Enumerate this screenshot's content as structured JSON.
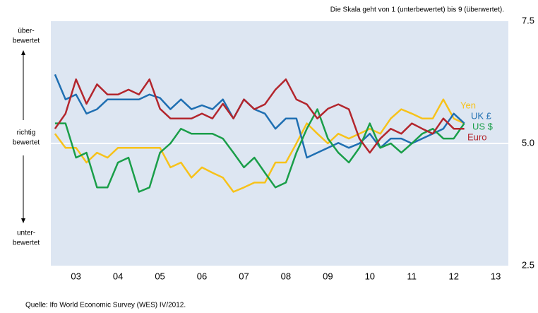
{
  "chart_data": {
    "type": "line",
    "annotation": "Die Skala geht von 1 (unterbewertet) bis 9 (überwertet).",
    "scale_labels": {
      "high": [
        "über-",
        "bewertet"
      ],
      "mid": [
        "richtig",
        "bewertet"
      ],
      "low": [
        "unter-",
        "bewertet"
      ]
    },
    "source": "Quelle: Ifo World Economic Survey (WES) IV/2012.",
    "x": [
      2003,
      2003.25,
      2003.5,
      2003.75,
      2004,
      2004.25,
      2004.5,
      2004.75,
      2005,
      2005.25,
      2005.5,
      2005.75,
      2006,
      2006.25,
      2006.5,
      2006.75,
      2007,
      2007.25,
      2007.5,
      2007.75,
      2008,
      2008.25,
      2008.5,
      2008.75,
      2009,
      2009.25,
      2009.5,
      2009.75,
      2010,
      2010.25,
      2010.5,
      2010.75,
      2011,
      2011.25,
      2011.5,
      2011.75,
      2012,
      2012.25,
      2012.5,
      2012.75
    ],
    "series": [
      {
        "name": "Yen",
        "color": "#f7c21a",
        "values": [
          5.2,
          4.91,
          4.91,
          4.61,
          4.81,
          4.71,
          4.91,
          4.91,
          4.91,
          4.91,
          4.91,
          4.51,
          4.61,
          4.3,
          4.51,
          4.4,
          4.3,
          4.01,
          4.1,
          4.2,
          4.2,
          4.61,
          4.61,
          5.0,
          5.41,
          5.2,
          5.0,
          5.2,
          5.1,
          5.2,
          5.3,
          5.2,
          5.51,
          5.7,
          5.61,
          5.51,
          5.51,
          5.9,
          5.51,
          5.41
        ]
      },
      {
        "name": "UK £",
        "color": "#1f6fb2",
        "values": [
          6.41,
          5.9,
          6.0,
          5.61,
          5.7,
          5.9,
          5.9,
          5.9,
          5.9,
          6.0,
          5.93,
          5.7,
          5.9,
          5.7,
          5.78,
          5.7,
          5.9,
          5.51,
          5.9,
          5.7,
          5.61,
          5.3,
          5.51,
          5.51,
          4.71,
          4.81,
          4.91,
          5.01,
          4.91,
          5.0,
          5.2,
          4.91,
          5.1,
          5.1,
          5.0,
          5.1,
          5.2,
          5.3,
          5.61,
          5.41
        ]
      },
      {
        "name": "US $",
        "color": "#1a9e49",
        "values": [
          5.41,
          5.41,
          4.71,
          4.81,
          4.1,
          4.1,
          4.61,
          4.71,
          4.01,
          4.1,
          4.81,
          5.0,
          5.3,
          5.2,
          5.2,
          5.2,
          5.1,
          4.81,
          4.51,
          4.71,
          4.4,
          4.1,
          4.2,
          4.81,
          5.3,
          5.7,
          5.1,
          4.81,
          4.61,
          4.91,
          5.41,
          4.91,
          5.0,
          4.81,
          5.0,
          5.2,
          5.3,
          5.1,
          5.1,
          5.41
        ]
      },
      {
        "name": "Euro",
        "color": "#b3262d",
        "values": [
          5.3,
          5.61,
          6.31,
          5.81,
          6.21,
          6.0,
          6.0,
          6.1,
          6.0,
          6.31,
          5.71,
          5.51,
          5.51,
          5.51,
          5.61,
          5.51,
          5.81,
          5.51,
          5.9,
          5.7,
          5.8,
          6.1,
          6.31,
          5.9,
          5.8,
          5.51,
          5.71,
          5.8,
          5.7,
          5.1,
          4.81,
          5.1,
          5.3,
          5.2,
          5.41,
          5.3,
          5.2,
          5.51,
          5.3,
          5.3
        ]
      }
    ],
    "xlim": [
      2002.9,
      2013.8
    ],
    "xticks": [
      {
        "value": 2003.5,
        "label": "03"
      },
      {
        "value": 2004.5,
        "label": "04"
      },
      {
        "value": 2005.5,
        "label": "05"
      },
      {
        "value": 2006.5,
        "label": "06"
      },
      {
        "value": 2007.5,
        "label": "07"
      },
      {
        "value": 2008.5,
        "label": "08"
      },
      {
        "value": 2009.5,
        "label": "09"
      },
      {
        "value": 2010.5,
        "label": "10"
      },
      {
        "value": 2011.5,
        "label": "11"
      },
      {
        "value": 2012.5,
        "label": "12"
      },
      {
        "value": 2013.5,
        "label": "13"
      }
    ],
    "ylim": [
      2.5,
      7.5
    ],
    "yticks": [
      {
        "value": 7.5,
        "label": "7.5"
      },
      {
        "value": 5,
        "label": "5.0"
      },
      {
        "value": 2.5,
        "label": "2.5"
      }
    ],
    "reference_line": 5,
    "background": "#dde6f2"
  }
}
